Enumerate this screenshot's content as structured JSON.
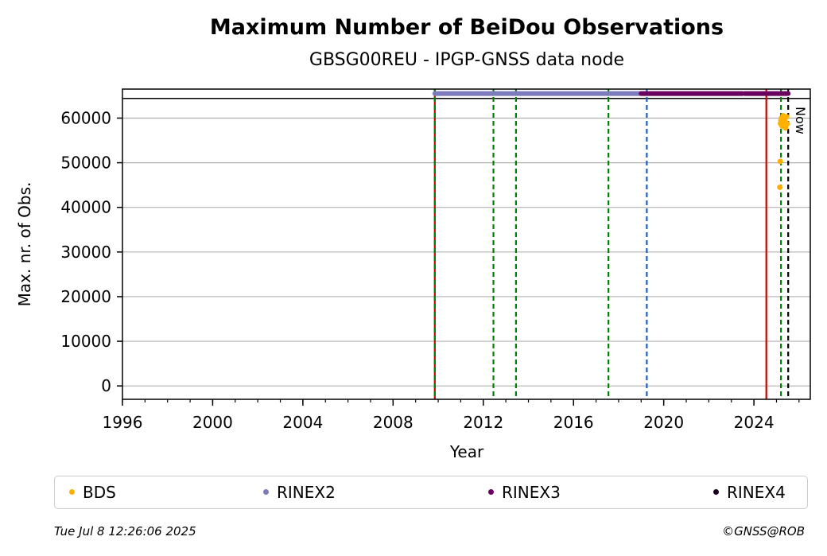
{
  "footer": {
    "timestamp": "Tue Jul  8 12:26:06 2025",
    "copyright": "©GNSS@ROB"
  },
  "chart_data": {
    "type": "scatter",
    "title": "Maximum Number of BeiDou Observations",
    "subtitle": "GBSG00REU - IPGP-GNSS data node",
    "xlabel": "Year",
    "ylabel": "Max. nr. of Obs.",
    "xlim": [
      1996,
      2026.5
    ],
    "ylim": [
      -3000,
      66500
    ],
    "x_ticks": [
      1996,
      2000,
      2004,
      2008,
      2012,
      2016,
      2020,
      2024
    ],
    "y_ticks": [
      0,
      10000,
      20000,
      30000,
      40000,
      50000,
      60000
    ],
    "grid": "horizontal",
    "legend_position": "bottom",
    "reference_line_y": 64400,
    "vertical_lines": [
      {
        "x": 2009.85,
        "color": "#cc0000",
        "style": "solid"
      },
      {
        "x": 2009.85,
        "color": "#008000",
        "style": "dashed"
      },
      {
        "x": 2012.45,
        "color": "#008000",
        "style": "dashed"
      },
      {
        "x": 2013.45,
        "color": "#008000",
        "style": "dashed"
      },
      {
        "x": 2017.55,
        "color": "#008000",
        "style": "dashed"
      },
      {
        "x": 2019.25,
        "color": "#1f5fbf",
        "style": "dashed"
      },
      {
        "x": 2024.55,
        "color": "#cc0000",
        "style": "solid"
      },
      {
        "x": 2025.2,
        "color": "#008000",
        "style": "dashed"
      },
      {
        "x": 2025.52,
        "color": "#000000",
        "style": "dashed",
        "label": "Now"
      }
    ],
    "series": [
      {
        "name": "BDS",
        "color": "#ffb000",
        "marker": "dot",
        "points": [
          [
            2025.15,
            44500
          ],
          [
            2025.17,
            50300
          ],
          [
            2025.18,
            58800
          ],
          [
            2025.2,
            59500
          ],
          [
            2025.22,
            60000
          ],
          [
            2025.25,
            58200
          ],
          [
            2025.28,
            59800
          ],
          [
            2025.3,
            60500
          ],
          [
            2025.33,
            58500
          ],
          [
            2025.35,
            59200
          ],
          [
            2025.38,
            60100
          ],
          [
            2025.4,
            57800
          ],
          [
            2025.42,
            59000
          ],
          [
            2025.45,
            60300
          ],
          [
            2025.47,
            58700
          ]
        ]
      },
      {
        "name": "RINEX2",
        "color": "#7b7bbd",
        "marker": "band",
        "y": 65500,
        "ranges": [
          [
            2009.85,
            2019.0
          ]
        ]
      },
      {
        "name": "RINEX3",
        "color": "#6a005f",
        "marker": "band",
        "y": 65500,
        "ranges": [
          [
            2019.0,
            2023.5
          ],
          [
            2023.6,
            2025.52
          ]
        ]
      },
      {
        "name": "RINEX4",
        "color": "#1a0020",
        "marker": "band",
        "y": 65500,
        "ranges": []
      }
    ]
  }
}
